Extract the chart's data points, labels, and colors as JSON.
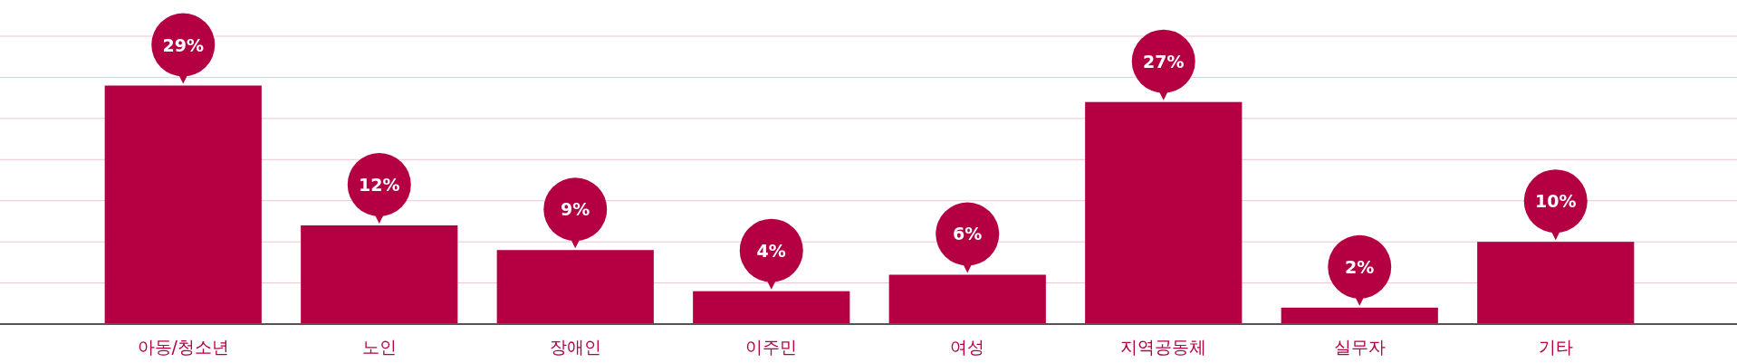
{
  "chart_data": {
    "type": "bar",
    "categories": [
      "아동/청소년",
      "노인",
      "장애인",
      "이주민",
      "여성",
      "지역공동체",
      "실무자",
      "기타"
    ],
    "values": [
      29,
      12,
      9,
      4,
      6,
      27,
      2,
      10
    ],
    "value_labels": [
      "29%",
      "12%",
      "9%",
      "4%",
      "6%",
      "27%",
      "2%",
      "10%"
    ],
    "color": "#b40042",
    "ylim": [
      0,
      35
    ],
    "yticks": [
      {
        "value": 5,
        "label": null
      },
      {
        "value": 10,
        "label": null
      },
      {
        "value": 15,
        "label": null
      },
      {
        "value": 20,
        "label": null
      },
      {
        "value": 25,
        "label": null
      },
      {
        "value": 30,
        "label": null
      },
      {
        "value": 35,
        "label": null
      }
    ],
    "grid": true,
    "tick_labels": "x"
  }
}
